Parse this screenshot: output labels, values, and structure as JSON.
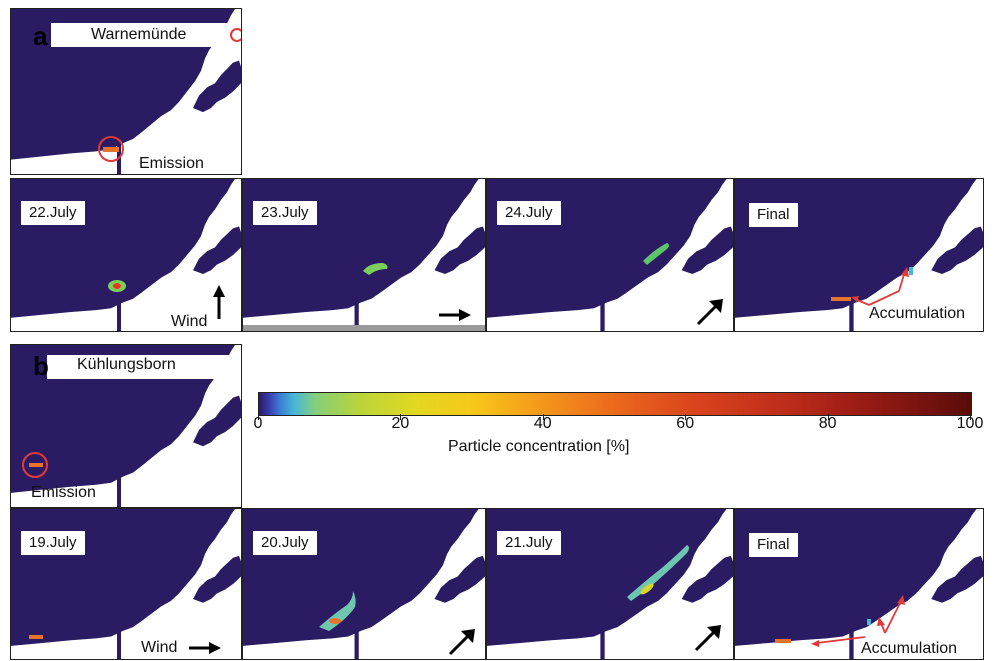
{
  "panel_a": {
    "letter": "a",
    "site": "Warnemünde",
    "emission_label": "Emission",
    "frames": [
      {
        "date": "22.July"
      },
      {
        "date": "23.July"
      },
      {
        "date": "24.July"
      },
      {
        "date": "Final"
      }
    ],
    "wind_label": "Wind",
    "accumulation_label": "Accumulation"
  },
  "panel_b": {
    "letter": "b",
    "site": "Kühlungsborn",
    "emission_label": "Emission",
    "frames": [
      {
        "date": "19.July"
      },
      {
        "date": "20.July"
      },
      {
        "date": "21.July"
      },
      {
        "date": "Final"
      }
    ],
    "wind_label": "Wind",
    "accumulation_label": "Accumulation"
  },
  "colorbar": {
    "ticks": [
      "0",
      "20",
      "40",
      "60",
      "80",
      "100"
    ],
    "title": "Particle concentration  [%]"
  },
  "colors": {
    "sea": "#2a1b63",
    "land": "#ffffff",
    "highlight_circle": "#e23a3a",
    "accumulation_arrow": "#e23a3a"
  }
}
